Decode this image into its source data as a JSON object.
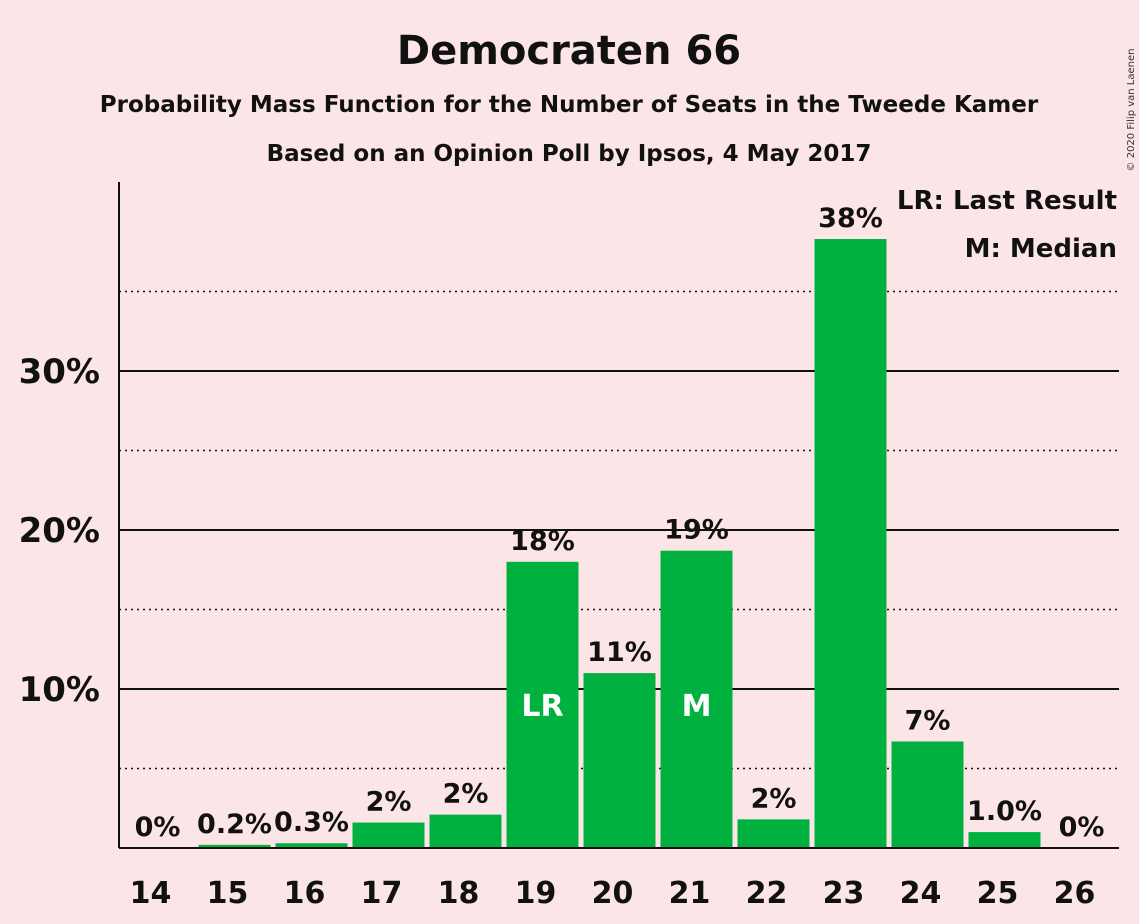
{
  "chart_data": {
    "type": "bar",
    "title": "Democraten 66",
    "subtitle": "Probability Mass Function for the Number of Seats in the Tweede Kamer",
    "subtitle2": "Based on an Opinion Poll by Ipsos, 4 May 2017",
    "categories": [
      "14",
      "15",
      "16",
      "17",
      "18",
      "19",
      "20",
      "21",
      "22",
      "23",
      "24",
      "25",
      "26"
    ],
    "values": [
      0,
      0.2,
      0.3,
      1.6,
      2.1,
      18.0,
      11.0,
      18.7,
      1.8,
      38.3,
      6.7,
      1.0,
      0
    ],
    "data_labels": [
      "0%",
      "0.2%",
      "0.3%",
      "2%",
      "2%",
      "18%",
      "11%",
      "19%",
      "2%",
      "38%",
      "7%",
      "1.0%",
      "0%"
    ],
    "bar_markers": {
      "19": "LR",
      "21": "M"
    },
    "ylim": [
      0,
      42
    ],
    "yticks": [
      10,
      20,
      30
    ],
    "ytick_labels": [
      "10%",
      "20%",
      "30%"
    ],
    "minor_gridlines": [
      5,
      15,
      25,
      35
    ],
    "legend": [
      "LR: Last Result",
      "M: Median"
    ],
    "legend_position": "top-right",
    "bar_color": "#00b140",
    "background_color": "#fbe5e7",
    "copyright": "© 2020 Filip van Laenen"
  }
}
